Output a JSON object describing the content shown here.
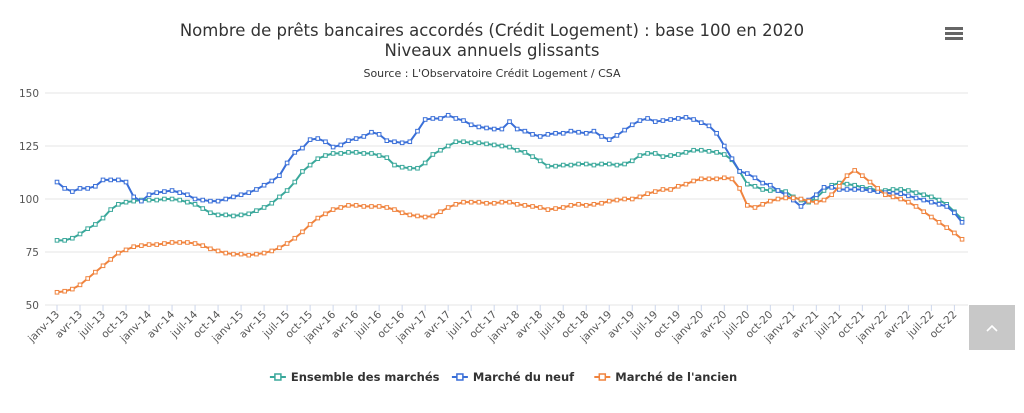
{
  "chart_data": {
    "type": "line",
    "title": "Nombre de prêts bancaires accordés (Crédit Logement) : base 100 en 2020",
    "subtitle": "Niveaux annuels glissants",
    "source": "Source : L'Observatoire Crédit Logement / CSA",
    "categories": [
      "janv-13",
      null,
      null,
      "avr-13",
      null,
      null,
      "juil-13",
      null,
      null,
      "oct-13",
      null,
      null,
      "janv-14",
      null,
      null,
      "avr-14",
      null,
      null,
      "juil-14",
      null,
      null,
      "oct-14",
      null,
      null,
      "janv-15",
      null,
      null,
      "avr-15",
      null,
      null,
      "juil-15",
      null,
      null,
      "oct-15",
      null,
      null,
      "janv-16",
      null,
      null,
      "avr-16",
      null,
      null,
      "juil-16",
      null,
      null,
      "oct-16",
      null,
      null,
      "janv-17",
      null,
      null,
      "avr-17",
      null,
      null,
      "juil-17",
      null,
      null,
      "oct-17",
      null,
      null,
      "janv-18",
      null,
      null,
      "avr-18",
      null,
      null,
      "juil-18",
      null,
      null,
      "oct-18",
      null,
      null,
      "janv-19",
      null,
      null,
      "avr-19",
      null,
      null,
      "juil-19",
      null,
      null,
      "oct-19",
      null,
      null,
      "janv-20",
      null,
      null,
      "avr-20",
      null,
      null,
      "juil-20",
      null,
      null,
      "oct-20",
      null,
      null,
      "janv-21",
      null,
      null,
      "avr-21",
      null,
      null,
      "juil-21",
      null,
      null,
      "oct-21",
      null,
      null,
      "janv-22",
      null,
      null,
      "avr-22",
      null,
      null,
      "juil-22",
      null,
      null,
      "oct-22",
      null
    ],
    "series": [
      {
        "name": "Ensemble des marchés",
        "color": "#3aa89b",
        "values": [
          80.5,
          80.5,
          81.5,
          83.5,
          86,
          88,
          91,
          95,
          97.5,
          98.5,
          99,
          99.5,
          99.5,
          99.5,
          100,
          100,
          99.5,
          98.5,
          97.5,
          95.5,
          93.5,
          92.5,
          92.5,
          92,
          92.5,
          93,
          94.5,
          96,
          98,
          101,
          104,
          108,
          113,
          116,
          119,
          120.5,
          121.5,
          121.5,
          122,
          122,
          121.5,
          121.5,
          120.5,
          119.5,
          116,
          115,
          114.5,
          114.5,
          117,
          121,
          123,
          125,
          127,
          127,
          126.5,
          126.5,
          126,
          125.5,
          125,
          124.5,
          123,
          122,
          120,
          118,
          115.5,
          115.5,
          116,
          116,
          116.5,
          116.5,
          116,
          116.5,
          116.5,
          116,
          116.5,
          118,
          120.5,
          121.5,
          121.5,
          120,
          120.5,
          121,
          122,
          123,
          123,
          122.5,
          122,
          121,
          118.5,
          113,
          107,
          106,
          104.5,
          104,
          104,
          103.5,
          101,
          99.5,
          98.5,
          100.5,
          104,
          106.5,
          107.5,
          107,
          106.5,
          105.5,
          105,
          104,
          104,
          104.5,
          104.5,
          104,
          103,
          102,
          101,
          99.5,
          97.5,
          94,
          90.5
        ]
      },
      {
        "name": "Marché du neuf",
        "color": "#3a6fd8",
        "values": [
          108,
          105,
          103.5,
          105,
          105,
          106,
          109,
          109,
          109,
          108,
          101,
          99,
          102,
          103,
          103.5,
          104,
          103,
          102,
          100,
          99.5,
          99,
          99,
          100,
          101,
          102,
          103,
          104.5,
          106.5,
          108.5,
          111,
          117,
          122,
          124,
          128,
          128.5,
          127,
          124.5,
          125.5,
          127.5,
          128.5,
          129.5,
          131.5,
          130.5,
          127.5,
          127,
          126.5,
          127,
          132,
          137.5,
          138,
          138,
          139.5,
          138,
          137,
          135,
          134,
          133.5,
          133,
          133,
          136.5,
          133,
          132,
          130.5,
          129.5,
          130.5,
          131,
          131,
          132,
          131.5,
          131,
          132,
          129.5,
          128,
          130,
          132.5,
          135,
          137,
          138,
          136.5,
          137,
          137.5,
          138,
          138.5,
          137.5,
          136,
          134.5,
          131,
          125,
          119,
          113,
          112,
          110,
          107.5,
          106.5,
          104,
          102,
          99.5,
          96.5,
          99.5,
          102,
          105.5,
          105.5,
          104.5,
          104.5,
          104.5,
          104.5,
          104,
          103.5,
          103,
          102.5,
          102.5,
          101.5,
          100.5,
          99.5,
          98.5,
          97.5,
          96.5,
          93.5,
          89
        ]
      },
      {
        "name": "Marché de l'ancien",
        "color": "#f0843f",
        "values": [
          56,
          56.5,
          57.5,
          59.5,
          62.5,
          65.5,
          68.5,
          71.5,
          74.5,
          76,
          77.5,
          78,
          78.5,
          78.5,
          79,
          79.5,
          79.5,
          79.5,
          79,
          78,
          76.5,
          75.5,
          74.5,
          74,
          74,
          73.5,
          74,
          74.5,
          75.5,
          77,
          79,
          81.5,
          84.5,
          88,
          91,
          93,
          95,
          96,
          97,
          97,
          96.5,
          96.5,
          96.5,
          96,
          95,
          93.5,
          92.5,
          92,
          91.5,
          92,
          94,
          96,
          97.5,
          98.5,
          98.5,
          98.5,
          98,
          98,
          98.5,
          98.5,
          97.5,
          97,
          96.5,
          96,
          95,
          95.5,
          96,
          97,
          97.5,
          97,
          97.5,
          98,
          99,
          99.5,
          100,
          100,
          101,
          102.5,
          103.5,
          104.5,
          104.5,
          106,
          107,
          108.5,
          109.5,
          109.5,
          109.5,
          110,
          109.5,
          105,
          97,
          96,
          97.5,
          99,
          100,
          100.5,
          100.5,
          100,
          99,
          98.5,
          99.5,
          102,
          106,
          111,
          113.5,
          111,
          108,
          105,
          102,
          101,
          100,
          98.5,
          96.5,
          94,
          91.5,
          89,
          86.5,
          84,
          81
        ]
      }
    ],
    "ylim": [
      50,
      150
    ],
    "yticks": [
      50,
      75,
      100,
      125,
      150
    ],
    "grid": true,
    "legend": "bottom"
  }
}
